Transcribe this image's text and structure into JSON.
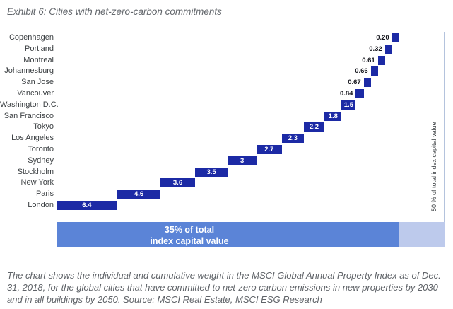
{
  "header": {
    "title": "Exhibit 6: Cities with net-zero-carbon commitments"
  },
  "caption": {
    "text": "The chart shows the individual and cumulative weight in the MSCI Global Annual Property Index as of Dec. 31, 2018, for the global cities that have committed to net-zero carbon emissions in new properties by 2030 and in all buildings by 2050. Source: MSCI Real Estate, MSCI ESG Research"
  },
  "colors": {
    "bar_blue": "#1c2aa5",
    "cumulative_blue": "#5b84d7",
    "cumulative_tail_blue": "#bdcaec",
    "axis_line": "#b4c3dd",
    "text_gray": "#5f6368",
    "value_label_dark": "#17181f"
  },
  "chart_data": {
    "type": "bar",
    "subtype": "waterfall-cumulative",
    "orientation": "horizontal",
    "title": "Exhibit 6: Cities with net-zero-carbon commitments",
    "categories": [
      "Copenhagen",
      "Portland",
      "Montreal",
      "Johannesburg",
      "San Jose",
      "Vancouver",
      "Washington D.C.",
      "San Francisco",
      "Tokyo",
      "Los Angeles",
      "Toronto",
      "Sydney",
      "Stockholm",
      "New York",
      "Paris",
      "London"
    ],
    "values": [
      0.2,
      0.32,
      0.61,
      0.66,
      0.67,
      0.84,
      1.5,
      1.8,
      2.2,
      2.3,
      2.7,
      3,
      3.5,
      3.6,
      4.6,
      6.4
    ],
    "value_labels": [
      "0.20",
      "0.32",
      "0.61",
      "0.66",
      "0.67",
      "0.84",
      "1.5",
      "1.8",
      "2.2",
      "2.3",
      "2.7",
      "3",
      "3.5",
      "3.6",
      "4.6",
      "6.4"
    ],
    "cumulative_total": 34.9,
    "xlim": [
      0,
      50
    ],
    "grid": false,
    "legend": false,
    "right_axis_label": "50 % of total index capital value",
    "footer_bar": {
      "line1": "35% of total",
      "line2": "index capital value",
      "main_percent": 35
    }
  }
}
